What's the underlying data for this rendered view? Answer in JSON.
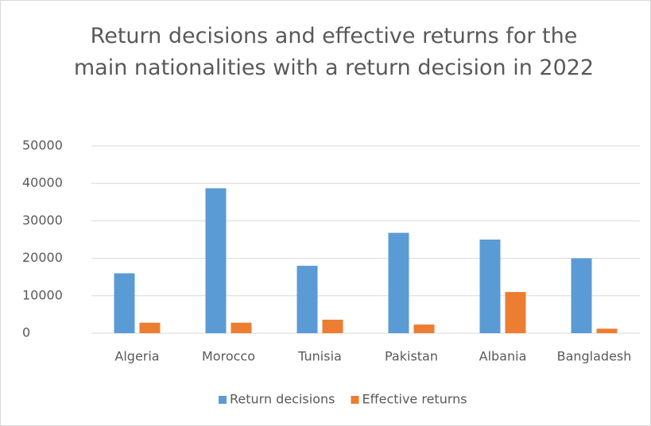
{
  "chart_data": {
    "type": "bar",
    "title": "Return decisions and effective returns for the main nationalities with a return decision in 2022",
    "categories": [
      "Algeria",
      "Morocco",
      "Tunisia",
      "Pakistan",
      "Albania",
      "Bangladesh"
    ],
    "series": [
      {
        "name": "Return decisions",
        "color": "#5b9bd5",
        "values": [
          16000,
          38700,
          18000,
          26800,
          25000,
          20000
        ]
      },
      {
        "name": "Effective returns",
        "color": "#ed7d31",
        "values": [
          2800,
          2800,
          3600,
          2300,
          11000,
          1200
        ]
      }
    ],
    "ylim": [
      0,
      50000
    ],
    "yticks": [
      0,
      10000,
      20000,
      30000,
      40000,
      50000
    ],
    "grid": true,
    "legend": "bottom"
  }
}
